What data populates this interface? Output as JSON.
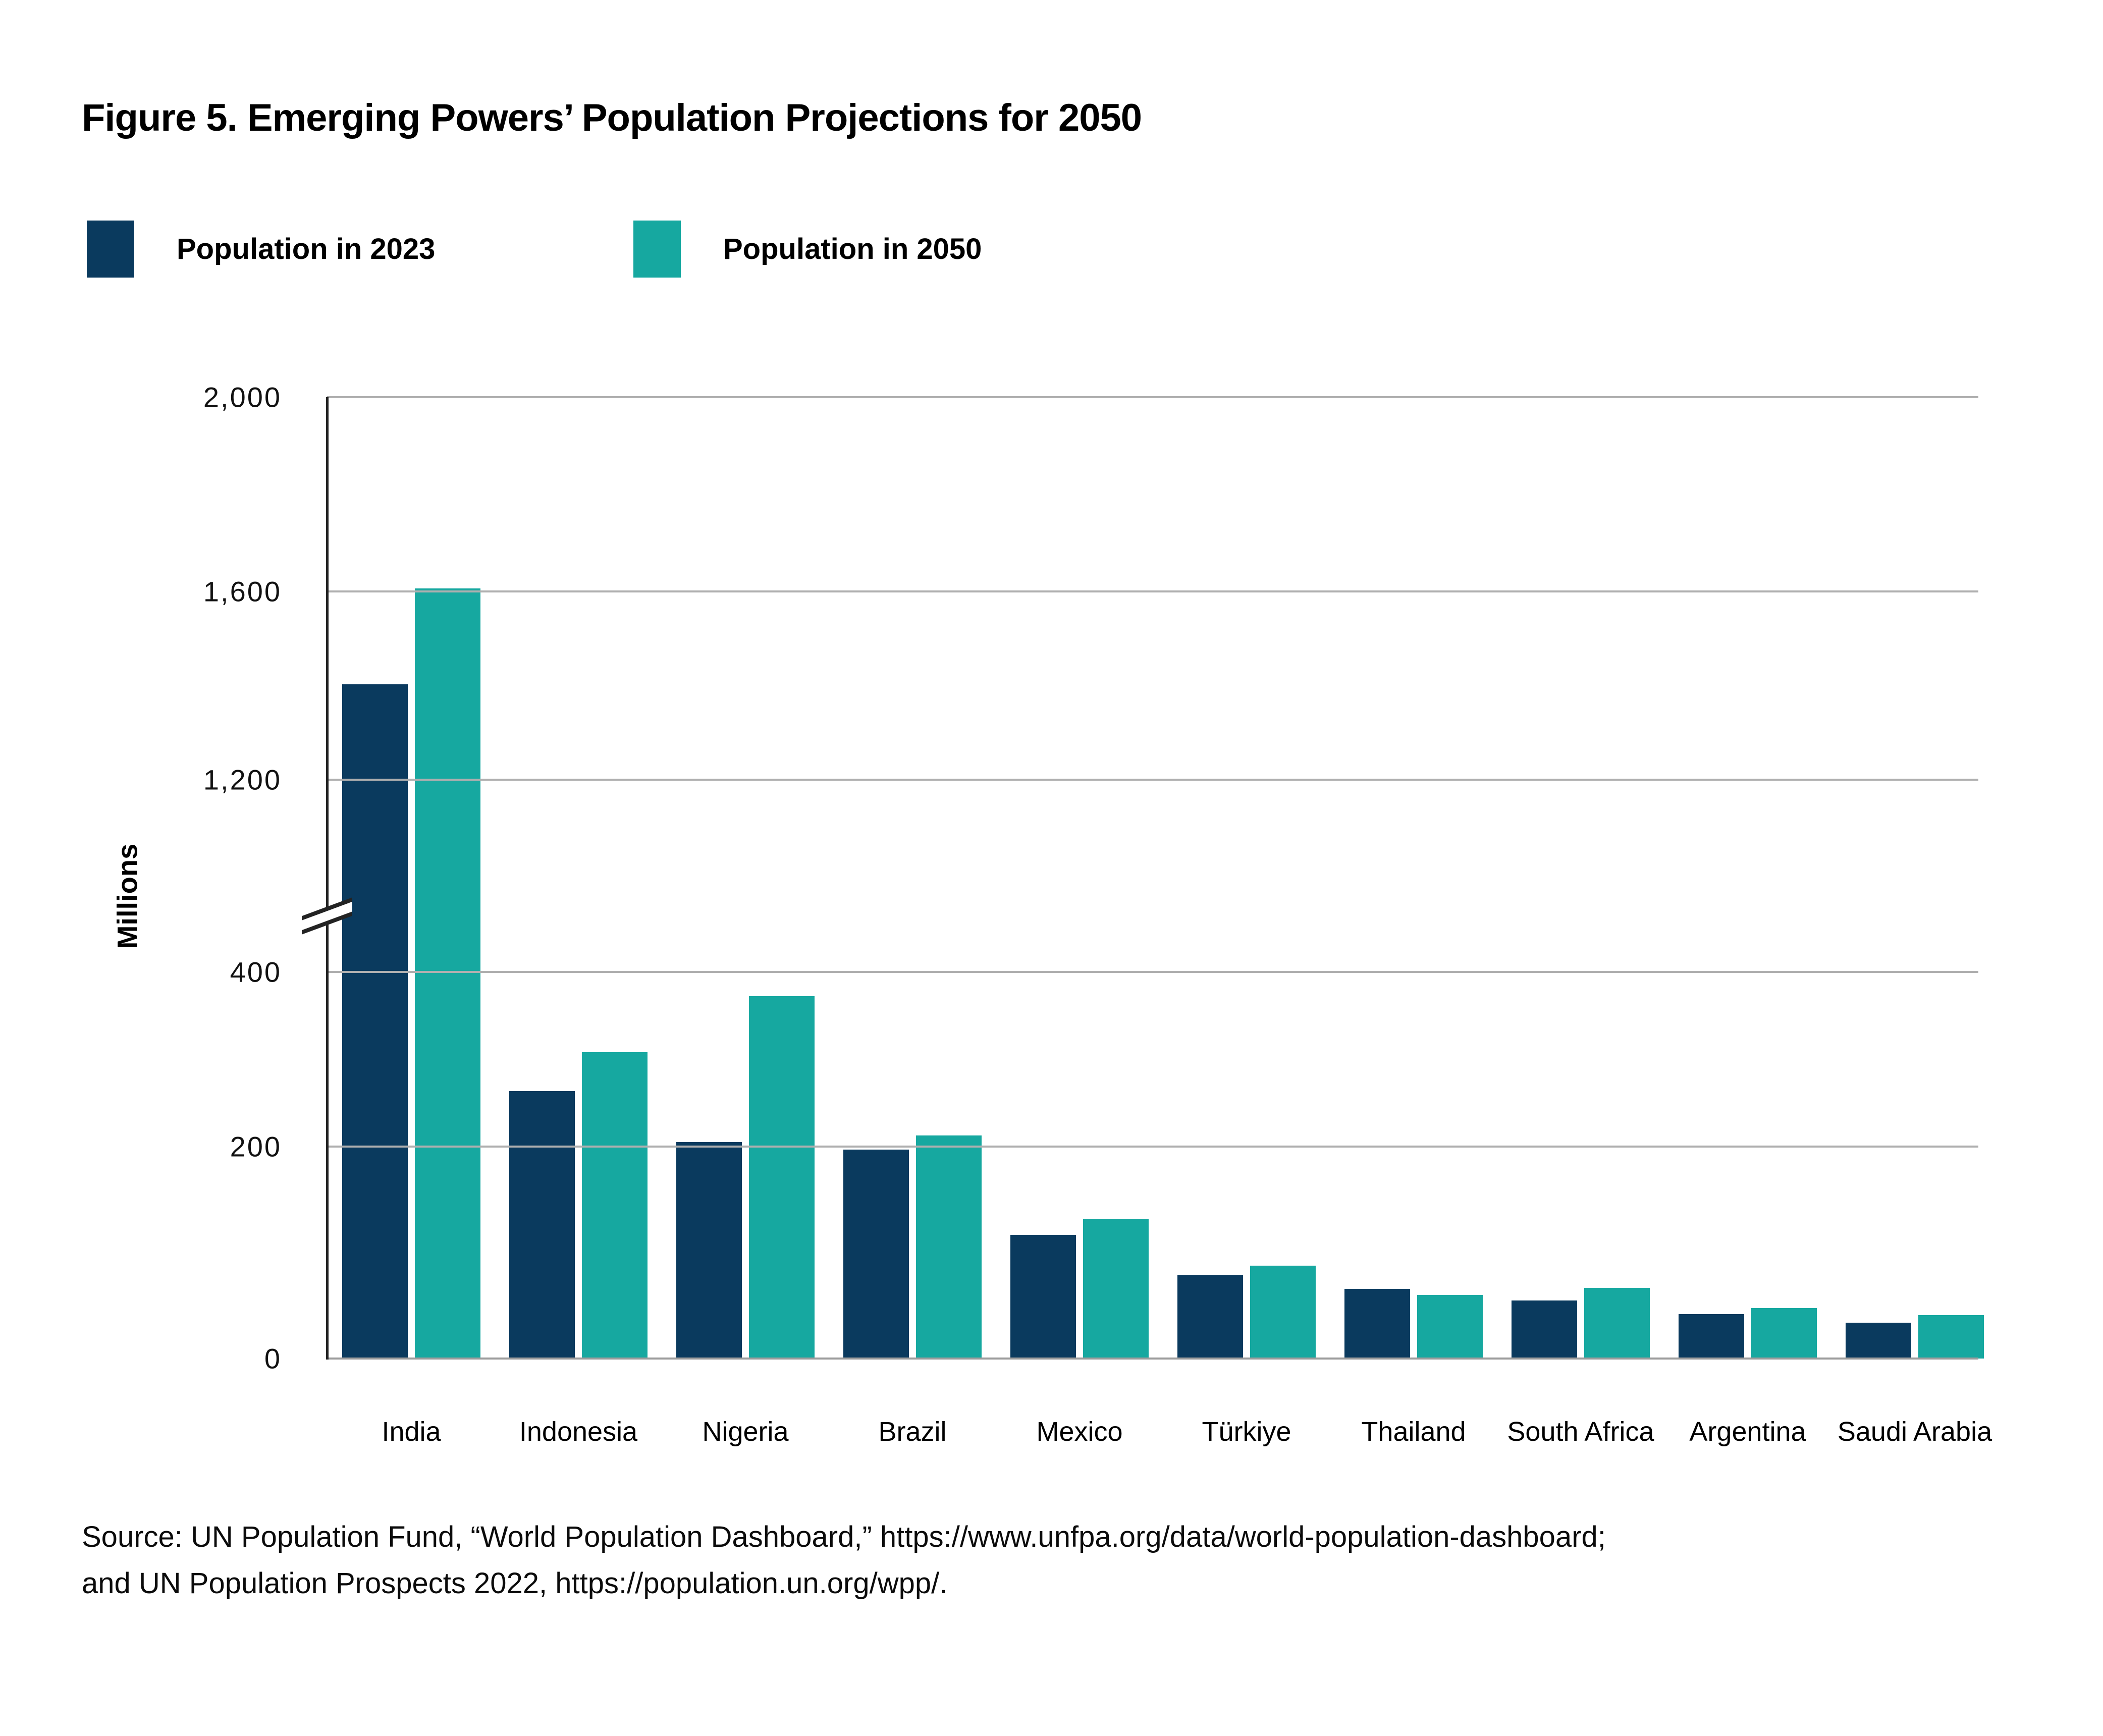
{
  "title": "Figure 5. Emerging Powers’ Population Projections for 2050",
  "legend": [
    {
      "label": "Population in 2023",
      "color": "#0A3A5E"
    },
    {
      "label": "Population in 2050",
      "color": "#16A8A0"
    }
  ],
  "chart_data": {
    "type": "bar",
    "title": "Figure 5. Emerging Powers’ Population Projections for 2050",
    "xlabel": "",
    "ylabel": "Millions",
    "categories": [
      "India",
      "Indonesia",
      "Nigeria",
      "Brazil",
      "Mexico",
      "Türkiye",
      "Thailand",
      "South Africa",
      "Argentina",
      "Saudi Arabia"
    ],
    "series": [
      {
        "name": "Population in 2023",
        "color": "#0A3A5E",
        "values": [
          1400,
          277,
          224,
          216,
          128,
          86,
          72,
          60,
          46,
          37
        ]
      },
      {
        "name": "Population in 2050",
        "color": "#16A8A0",
        "values": [
          1600,
          317,
          375,
          231,
          144,
          96,
          66,
          73,
          52,
          45
        ]
      }
    ],
    "y_axis": {
      "label": "Millions",
      "ticks": [
        0,
        200,
        400,
        1200,
        1600,
        2000
      ],
      "tick_labels": [
        "0",
        "200",
        "400",
        "1,200",
        "1,600",
        "2,000"
      ],
      "axis_break_between": [
        400,
        1200
      ],
      "ylim": [
        0,
        2000
      ]
    },
    "grid": true,
    "legend_position": "top-left"
  },
  "source": {
    "line1": "Source: UN Population Fund, “World Population Dashboard,” https://www.unfpa.org/data/world-population-dashboard;",
    "line2": "and UN Population Prospects 2022,  https://population.un.org/wpp/."
  }
}
